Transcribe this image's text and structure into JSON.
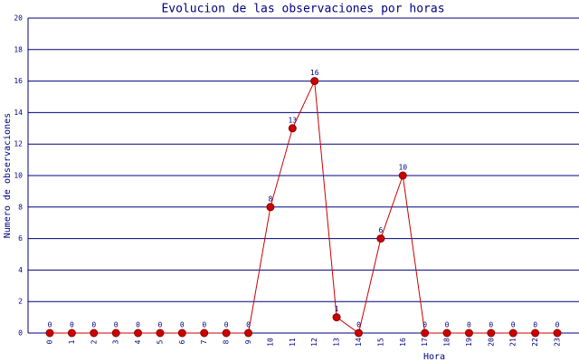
{
  "chart_data": {
    "type": "line",
    "title": "Evolucion de las observaciones por horas",
    "x_label": "Hora",
    "y_label": "Numero de observaciones",
    "categories": [
      "0",
      "1",
      "2",
      "3",
      "4",
      "5",
      "6",
      "7",
      "8",
      "9",
      "10",
      "11",
      "12",
      "13",
      "14",
      "15",
      "16",
      "17",
      "18",
      "19",
      "20",
      "21",
      "22",
      "23"
    ],
    "series": [
      {
        "name": "observaciones",
        "color": "#cc0000",
        "values": [
          0,
          0,
          0,
          0,
          0,
          0,
          0,
          0,
          0,
          0,
          8,
          13,
          16,
          1,
          0,
          6,
          10,
          0,
          0,
          0,
          0,
          0,
          0,
          0
        ]
      }
    ],
    "ylim": [
      0,
      20
    ],
    "yticks": [
      0,
      2,
      4,
      6,
      8,
      10,
      12,
      14,
      16,
      18,
      20
    ],
    "grid": true
  }
}
